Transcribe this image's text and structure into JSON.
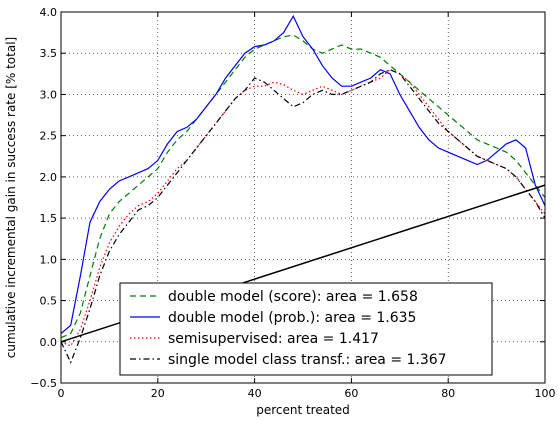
{
  "chart_data": {
    "type": "line",
    "title": "",
    "xlabel": "percent treated",
    "ylabel": "cumulative incremental gain in success rate [% total]",
    "xlim": [
      0,
      100
    ],
    "ylim": [
      -0.5,
      4.0
    ],
    "xticks": [
      0,
      20,
      40,
      60,
      80,
      100
    ],
    "yticks": [
      -0.5,
      0.0,
      0.5,
      1.0,
      1.5,
      2.0,
      2.5,
      3.0,
      3.5,
      4.0
    ],
    "xtick_labels": [
      "0",
      "20",
      "40",
      "60",
      "80",
      "100"
    ],
    "ytick_labels": [
      "−0.5",
      "0.0",
      "0.5",
      "1.0",
      "1.5",
      "2.0",
      "2.5",
      "3.0",
      "3.5",
      "4.0"
    ],
    "grid": true,
    "legend_position": "lower-center",
    "series": [
      {
        "name": "double model (score):  area = 1.658",
        "color": "#008000",
        "style": "dashed",
        "x": [
          0,
          2,
          4,
          6,
          8,
          10,
          12,
          14,
          16,
          18,
          20,
          22,
          24,
          26,
          28,
          30,
          32,
          34,
          36,
          38,
          40,
          42,
          44,
          46,
          48,
          50,
          52,
          54,
          56,
          58,
          60,
          62,
          64,
          66,
          68,
          70,
          72,
          74,
          76,
          78,
          80,
          82,
          84,
          86,
          88,
          90,
          92,
          94,
          96,
          98,
          100
        ],
        "y": [
          0.05,
          0.1,
          0.35,
          0.8,
          1.25,
          1.55,
          1.7,
          1.8,
          1.9,
          2.0,
          2.1,
          2.3,
          2.45,
          2.55,
          2.7,
          2.85,
          3.0,
          3.15,
          3.3,
          3.45,
          3.55,
          3.6,
          3.65,
          3.7,
          3.72,
          3.65,
          3.55,
          3.5,
          3.55,
          3.6,
          3.55,
          3.55,
          3.5,
          3.45,
          3.35,
          3.25,
          3.15,
          3.05,
          2.95,
          2.85,
          2.75,
          2.65,
          2.55,
          2.45,
          2.4,
          2.35,
          2.3,
          2.2,
          2.05,
          1.9,
          1.75
        ]
      },
      {
        "name": "double model (prob.):  area = 1.635",
        "color": "#0000ff",
        "style": "solid",
        "x": [
          0,
          2,
          4,
          6,
          8,
          10,
          12,
          14,
          16,
          18,
          20,
          22,
          24,
          26,
          28,
          30,
          32,
          34,
          36,
          38,
          40,
          42,
          44,
          46,
          48,
          50,
          52,
          54,
          56,
          58,
          60,
          62,
          64,
          66,
          68,
          70,
          72,
          74,
          76,
          78,
          80,
          82,
          84,
          86,
          88,
          90,
          92,
          94,
          96,
          98,
          100
        ],
        "y": [
          0.1,
          0.2,
          0.8,
          1.45,
          1.7,
          1.85,
          1.95,
          2.0,
          2.05,
          2.1,
          2.2,
          2.4,
          2.55,
          2.6,
          2.7,
          2.85,
          3.0,
          3.2,
          3.35,
          3.5,
          3.58,
          3.6,
          3.65,
          3.75,
          3.95,
          3.7,
          3.55,
          3.35,
          3.2,
          3.1,
          3.1,
          3.15,
          3.2,
          3.3,
          3.25,
          3.0,
          2.8,
          2.6,
          2.45,
          2.35,
          2.3,
          2.25,
          2.2,
          2.15,
          2.2,
          2.3,
          2.4,
          2.45,
          2.35,
          1.9,
          1.65
        ]
      },
      {
        "name": "semisupervised:  area = 1.417",
        "color": "#ff0000",
        "style": "dotted",
        "x": [
          0,
          2,
          4,
          6,
          8,
          10,
          12,
          14,
          16,
          18,
          20,
          22,
          24,
          26,
          28,
          30,
          32,
          34,
          36,
          38,
          40,
          42,
          44,
          46,
          48,
          50,
          52,
          54,
          56,
          58,
          60,
          62,
          64,
          66,
          68,
          70,
          72,
          74,
          76,
          78,
          80,
          82,
          84,
          86,
          88,
          90,
          92,
          94,
          96,
          98,
          100
        ],
        "y": [
          0.0,
          -0.05,
          0.15,
          0.5,
          0.9,
          1.2,
          1.4,
          1.55,
          1.65,
          1.7,
          1.8,
          1.95,
          2.1,
          2.2,
          2.35,
          2.5,
          2.65,
          2.8,
          2.95,
          3.05,
          3.1,
          3.1,
          3.15,
          3.12,
          3.05,
          3.0,
          3.05,
          3.1,
          3.05,
          3.0,
          3.05,
          3.1,
          3.15,
          3.2,
          3.3,
          3.25,
          3.15,
          3.0,
          2.85,
          2.7,
          2.55,
          2.45,
          2.35,
          2.25,
          2.2,
          2.15,
          2.1,
          2.0,
          1.85,
          1.7,
          1.55
        ]
      },
      {
        "name": "single model class transf.:  area = 1.367",
        "color": "#000000",
        "style": "dashdot",
        "x": [
          0,
          2,
          4,
          6,
          8,
          10,
          12,
          14,
          16,
          18,
          20,
          22,
          24,
          26,
          28,
          30,
          32,
          34,
          36,
          38,
          40,
          42,
          44,
          46,
          48,
          50,
          52,
          54,
          56,
          58,
          60,
          62,
          64,
          66,
          68,
          70,
          72,
          74,
          76,
          78,
          80,
          82,
          84,
          86,
          88,
          90,
          92,
          94,
          96,
          98,
          100
        ],
        "y": [
          0.0,
          -0.25,
          0.05,
          0.4,
          0.8,
          1.1,
          1.3,
          1.45,
          1.6,
          1.65,
          1.75,
          1.9,
          2.05,
          2.2,
          2.35,
          2.5,
          2.65,
          2.8,
          2.95,
          3.05,
          3.2,
          3.15,
          3.05,
          2.95,
          2.85,
          2.9,
          3.0,
          3.05,
          3.0,
          3.0,
          3.05,
          3.1,
          3.15,
          3.25,
          3.3,
          3.25,
          3.1,
          2.95,
          2.8,
          2.65,
          2.55,
          2.45,
          2.35,
          2.25,
          2.2,
          2.15,
          2.1,
          2.0,
          1.85,
          1.7,
          1.5
        ]
      },
      {
        "name": "",
        "color": "#000000",
        "style": "solid",
        "x": [
          0,
          100
        ],
        "y": [
          0.0,
          1.9
        ]
      }
    ]
  }
}
